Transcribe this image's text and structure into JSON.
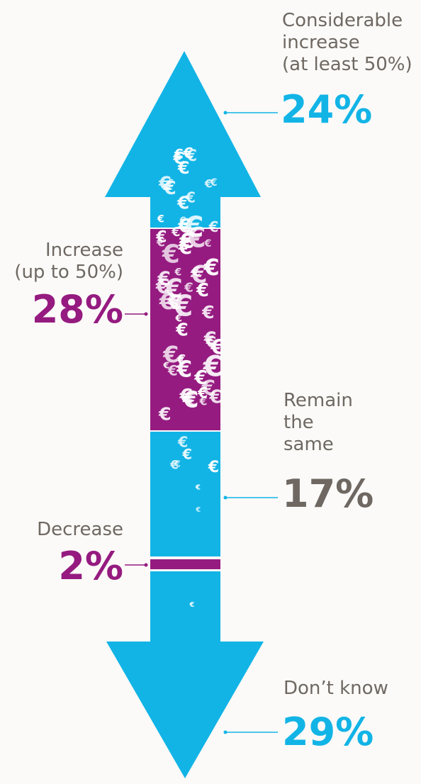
{
  "colors": {
    "blue": "#12b4e6",
    "purple": "#951b80",
    "grey": "#6f6862",
    "euro": "#ffffff"
  },
  "chart_data": {
    "type": "bar",
    "categories": [
      "Considerable increase (at least 50%)",
      "Increase (up to 50%)",
      "Remain the same",
      "Decrease",
      "Don’t know"
    ],
    "values": [
      24,
      28,
      17,
      2,
      29
    ],
    "value_labels": [
      "24%",
      "28%",
      "17%",
      "2%",
      "29%"
    ],
    "colors": [
      "#12b4e6",
      "#951b80",
      "#12b4e6",
      "#951b80",
      "#12b4e6"
    ],
    "label_colors": [
      "#12b4e6",
      "#951b80",
      "#6f6862",
      "#951b80",
      "#12b4e6"
    ],
    "title": "",
    "xlabel": "",
    "ylabel": ""
  },
  "labels": {
    "considerable_increase": "Considerable\nincrease\n(at least 50%)",
    "increase": "Increase\n(up to 50%)",
    "remain_same": "Remain\nthe\nsame",
    "decrease": "Decrease",
    "dont_know": "Don’t know"
  },
  "euro_symbol": "€"
}
